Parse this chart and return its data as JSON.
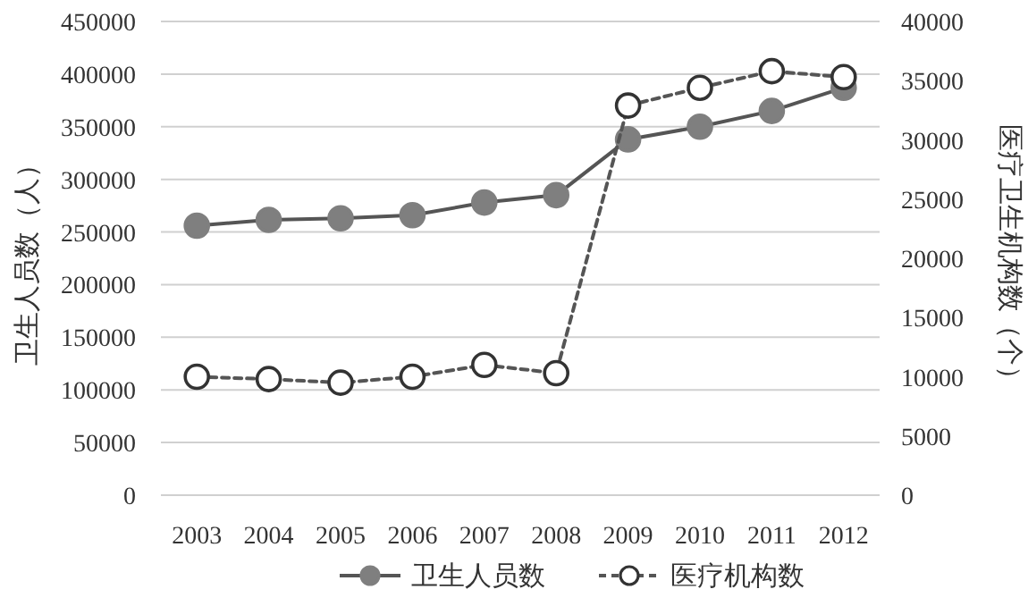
{
  "chart_data": {
    "type": "line",
    "categories": [
      "2003",
      "2004",
      "2005",
      "2006",
      "2007",
      "2008",
      "2009",
      "2010",
      "2011",
      "2012"
    ],
    "ylabel": "卫生人员数（人）",
    "y2label": "医疗卫生机构数（个）",
    "ylim": [
      0,
      450000
    ],
    "yticks": [
      0,
      50000,
      100000,
      150000,
      200000,
      250000,
      300000,
      350000,
      400000,
      450000
    ],
    "y2lim": [
      0,
      40000
    ],
    "y2ticks": [
      0,
      5000,
      10000,
      15000,
      20000,
      25000,
      30000,
      35000,
      40000
    ],
    "grid": "y",
    "legend": "bottom",
    "series": [
      {
        "name": "卫生人员数",
        "color": "#7f7f7f",
        "marker": "circle",
        "line_style": "solid",
        "values": [
          256000,
          261500,
          263000,
          266000,
          278000,
          285000,
          338000,
          350000,
          365000,
          387000
        ]
      },
      {
        "name": "医疗机构数",
        "color": "#ffffff",
        "axis": "y2",
        "marker": "circle",
        "line_style": "dashed",
        "values": [
          10000,
          9800,
          9500,
          10000,
          11000,
          10300,
          32900,
          34400,
          35800,
          35300
        ]
      }
    ]
  }
}
